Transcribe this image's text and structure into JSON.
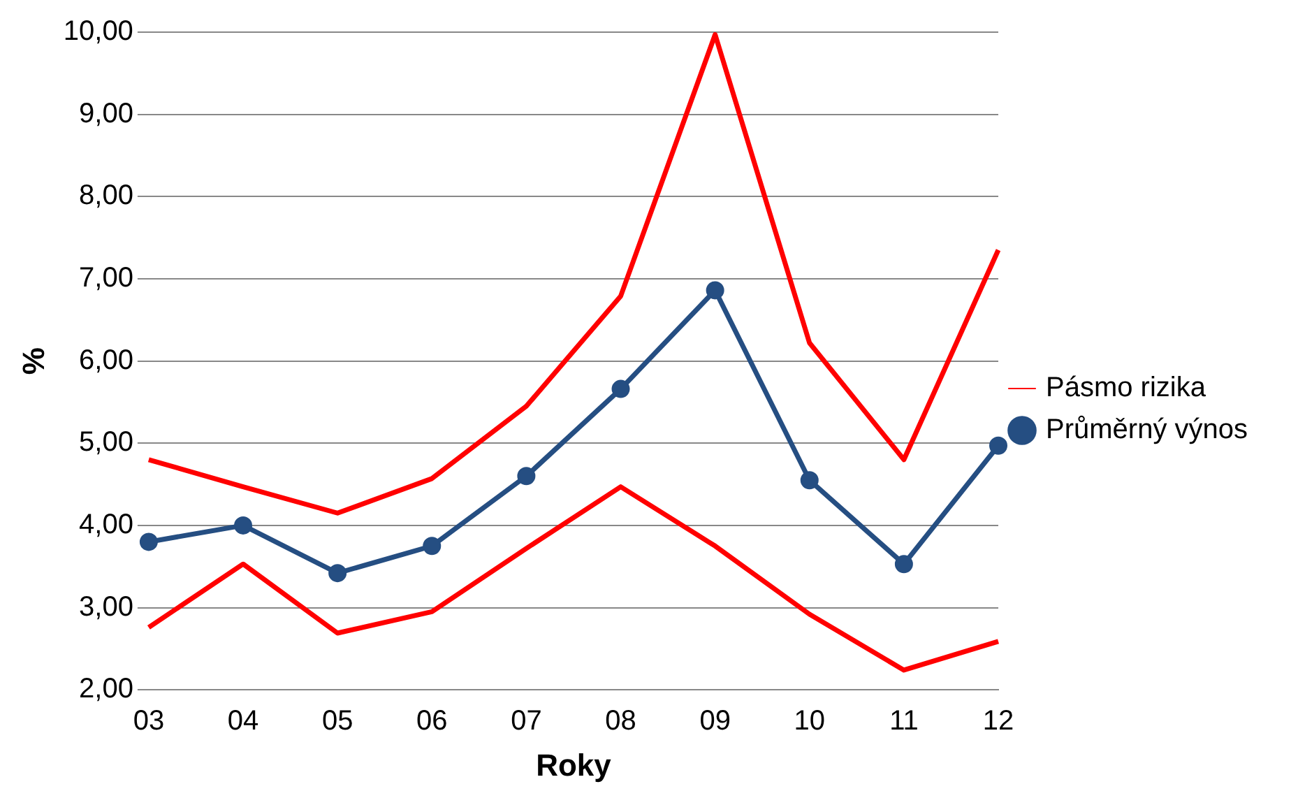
{
  "chart_data": {
    "type": "line",
    "xlabel": "Roky",
    "ylabel": "%",
    "categories": [
      "03",
      "04",
      "05",
      "06",
      "07",
      "08",
      "09",
      "10",
      "11",
      "12"
    ],
    "series": [
      {
        "name": "Pásmo rizika",
        "color": "#ff0000",
        "marker": "none",
        "values": [
          4.8,
          4.47,
          4.15,
          4.57,
          5.45,
          6.79,
          9.97,
          6.22,
          4.8,
          7.35
        ]
      },
      {
        "color": "#ff0000",
        "marker": "none",
        "values": [
          2.76,
          3.53,
          2.69,
          2.95,
          3.72,
          4.47,
          3.75,
          2.92,
          2.24,
          2.59
        ]
      },
      {
        "name": "Průměrný výnos",
        "color": "#254e82",
        "marker": "circle",
        "values": [
          3.8,
          4.0,
          3.42,
          3.75,
          4.6,
          5.66,
          6.86,
          4.55,
          3.53,
          4.97
        ]
      }
    ],
    "ylim": [
      2,
      10
    ],
    "yticks": [
      {
        "value": 2,
        "label": "2,00"
      },
      {
        "value": 3,
        "label": "3,00"
      },
      {
        "value": 4,
        "label": "4,00"
      },
      {
        "value": 5,
        "label": "5,00"
      },
      {
        "value": 6,
        "label": "6,00"
      },
      {
        "value": 7,
        "label": "7,00"
      },
      {
        "value": 8,
        "label": "8,00"
      },
      {
        "value": 9,
        "label": "9,00"
      },
      {
        "value": 10,
        "label": "10,00"
      }
    ],
    "grid": "y",
    "legend": "right"
  }
}
